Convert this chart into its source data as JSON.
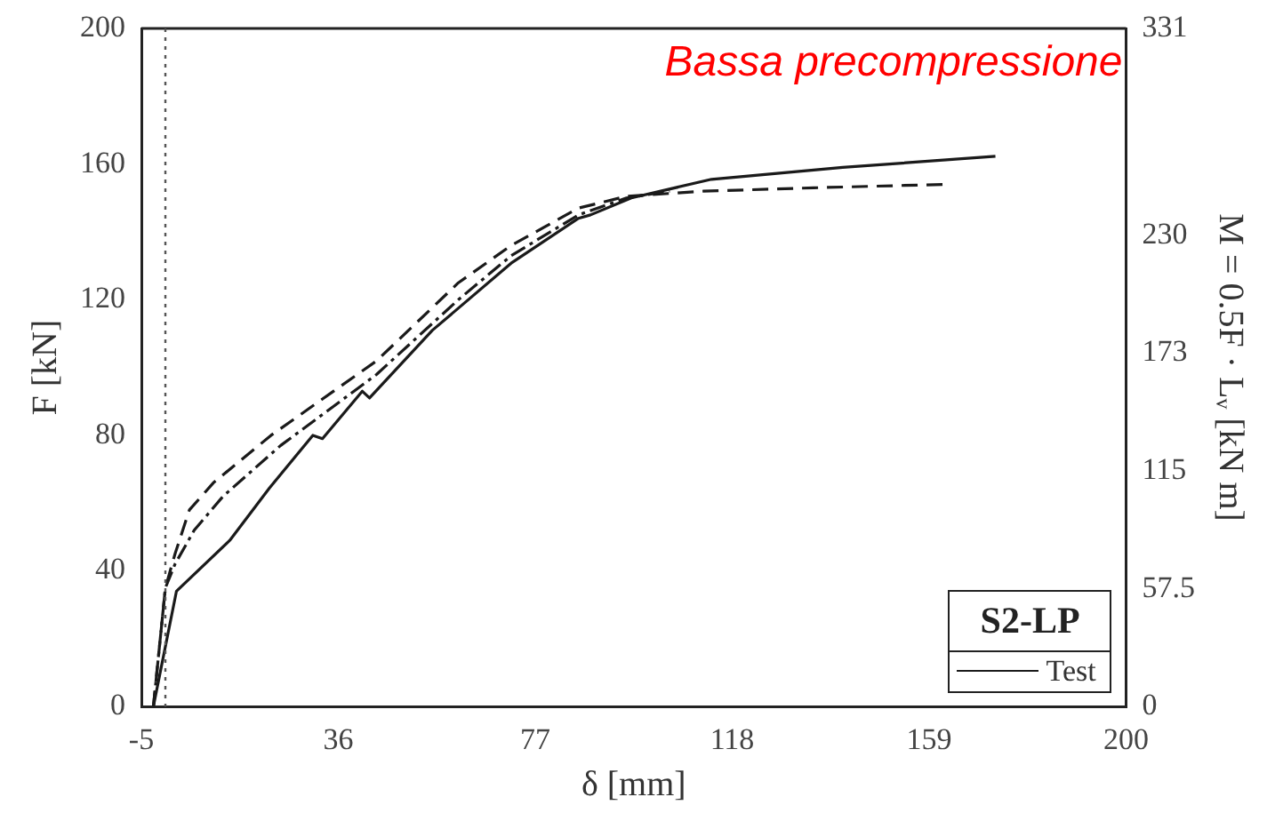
{
  "chart_data": {
    "type": "line",
    "xlabel": "δ [mm]",
    "ylabel": "F [kN]",
    "y2label": "M = 0.5F · Lᵥ [kN m]",
    "legend_title": "S2-LP",
    "legend": "bottom right",
    "grid": false,
    "marker": "none",
    "annotations": [
      "Bassa precompressione"
    ],
    "xlim": [
      -5,
      200
    ],
    "xticks": [
      -5,
      36,
      77,
      118,
      159,
      200
    ],
    "ylim": [
      0,
      200
    ],
    "yticks": [
      0,
      40,
      80,
      120,
      160,
      200
    ],
    "y2lim": [
      0,
      331
    ],
    "y2ticks": [
      0,
      57.5,
      115,
      {
        "value": 172.5,
        "label": "173"
      },
      230,
      331
    ],
    "ref_lines": [
      {
        "axis": "x",
        "value": 0,
        "color": "#555555",
        "line_style": "dotted"
      }
    ],
    "series": [
      {
        "name": "Test",
        "color": "#1a1a1a",
        "line_style": "solid",
        "x": [
          -2.5,
          2.3,
          13.4,
          21.7,
          30.7,
          32.7,
          41,
          42.5,
          55.6,
          72.2,
          86,
          88.5,
          97,
          113.7,
          141,
          172.8
        ],
        "values": [
          0,
          34,
          49,
          64.5,
          80,
          79,
          93,
          91,
          111,
          131,
          144,
          145,
          150,
          155.5,
          159,
          162.3
        ]
      },
      {
        "color": "#1a1a1a",
        "line_style": "dashed",
        "x": [
          -2.5,
          0,
          2,
          5,
          10,
          22,
          44,
          61,
          72,
          86,
          96,
          112,
          135,
          162
        ],
        "values": [
          0,
          35,
          45,
          58,
          66,
          80,
          102,
          125,
          136,
          147,
          150.5,
          152,
          153,
          154
        ]
      },
      {
        "color": "#1a1a1a",
        "line_style": "dashdot",
        "x": [
          -2.5,
          0,
          2,
          6,
          12,
          24,
          44,
          61,
          72,
          86,
          96,
          105
        ],
        "values": [
          0,
          35,
          42,
          52,
          62,
          77,
          98,
          120,
          133,
          145,
          150,
          152
        ]
      }
    ]
  }
}
